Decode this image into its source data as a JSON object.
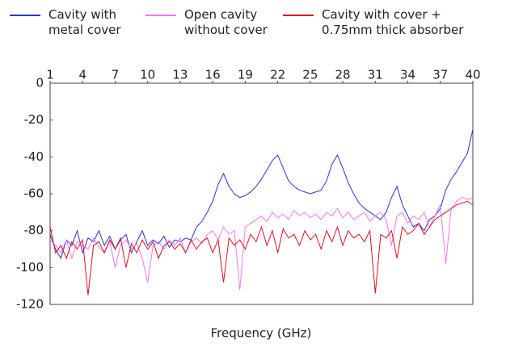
{
  "chart_data": {
    "type": "line",
    "xlabel": "Frequency (GHz)",
    "x": [
      1,
      1.5,
      2,
      2.5,
      3,
      3.5,
      4,
      4.5,
      5,
      5.5,
      6,
      6.5,
      7,
      7.5,
      8,
      8.5,
      9,
      9.5,
      10,
      10.5,
      11,
      11.5,
      12,
      12.5,
      13,
      13.5,
      14,
      14.5,
      15,
      15.5,
      16,
      16.5,
      17,
      17.5,
      18,
      18.5,
      19,
      19.5,
      20,
      20.5,
      21,
      21.5,
      22,
      22.5,
      23,
      23.5,
      24,
      24.5,
      25,
      25.5,
      26,
      26.5,
      27,
      27.5,
      28,
      28.5,
      29,
      29.5,
      30,
      30.5,
      31,
      31.5,
      32,
      32.5,
      33,
      33.5,
      34,
      34.5,
      35,
      35.5,
      36,
      36.5,
      37,
      37.5,
      38,
      38.5,
      39,
      39.5,
      40
    ],
    "series": [
      {
        "name": "Cavity with metal cover",
        "color": "#2438d6",
        "values": [
          -82,
          -90,
          -95,
          -85,
          -88,
          -80,
          -92,
          -84,
          -86,
          -80,
          -88,
          -83,
          -90,
          -85,
          -82,
          -92,
          -86,
          -80,
          -88,
          -85,
          -87,
          -83,
          -89,
          -85,
          -86,
          -84,
          -85,
          -78,
          -75,
          -70,
          -64,
          -55,
          -49,
          -56,
          -60,
          -62,
          -61,
          -59,
          -56,
          -52,
          -47,
          -42,
          -39,
          -46,
          -53,
          -56,
          -58,
          -59,
          -60,
          -59,
          -58,
          -53,
          -44,
          -39,
          -46,
          -54,
          -60,
          -65,
          -68,
          -70,
          -72,
          -74,
          -70,
          -62,
          -56,
          -66,
          -72,
          -78,
          -76,
          -80,
          -74,
          -72,
          -68,
          -58,
          -52,
          -48,
          -43,
          -38,
          -25
        ]
      },
      {
        "name": "Open cavity without cover",
        "color": "#f078f0",
        "values": [
          -85,
          -88,
          -92,
          -85,
          -95,
          -86,
          -88,
          -90,
          -84,
          -89,
          -92,
          -86,
          -100,
          -88,
          -85,
          -90,
          -87,
          -95,
          -108,
          -88,
          -86,
          -90,
          -85,
          -88,
          -84,
          -92,
          -86,
          -84,
          -87,
          -82,
          -80,
          -85,
          -78,
          -82,
          -80,
          -112,
          -78,
          -76,
          -74,
          -72,
          -75,
          -70,
          -73,
          -71,
          -74,
          -69,
          -72,
          -70,
          -73,
          -71,
          -74,
          -70,
          -72,
          -68,
          -73,
          -70,
          -74,
          -72,
          -70,
          -75,
          -72,
          -70,
          -74,
          -88,
          -72,
          -70,
          -76,
          -72,
          -74,
          -70,
          -78,
          -72,
          -66,
          -98,
          -68,
          -64,
          -62,
          -63,
          -62
        ]
      },
      {
        "name": "Cavity with cover + 0.75mm thick absorber",
        "color": "#e3101c",
        "values": [
          -78,
          -92,
          -88,
          -95,
          -86,
          -90,
          -85,
          -115,
          -88,
          -86,
          -92,
          -85,
          -90,
          -84,
          -100,
          -87,
          -92,
          -85,
          -90,
          -86,
          -95,
          -88,
          -86,
          -90,
          -87,
          -92,
          -85,
          -90,
          -86,
          -84,
          -92,
          -85,
          -108,
          -84,
          -88,
          -85,
          -90,
          -82,
          -86,
          -78,
          -88,
          -80,
          -92,
          -79,
          -84,
          -82,
          -88,
          -80,
          -85,
          -82,
          -90,
          -80,
          -86,
          -78,
          -88,
          -80,
          -84,
          -82,
          -86,
          -80,
          -114,
          -82,
          -84,
          -80,
          -95,
          -78,
          -82,
          -80,
          -76,
          -82,
          -78,
          -74,
          -72,
          -70,
          -68,
          -66,
          -65,
          -64,
          -66
        ]
      }
    ],
    "xlim": [
      1,
      40
    ],
    "xticks": [
      1,
      4,
      7,
      10,
      13,
      16,
      19,
      22,
      25,
      28,
      31,
      34,
      37,
      40
    ],
    "ylim": [
      -120,
      0
    ],
    "yticks": [
      0,
      -20,
      -40,
      -60,
      -80,
      -100,
      -120
    ],
    "grid": false,
    "legend": "top"
  }
}
